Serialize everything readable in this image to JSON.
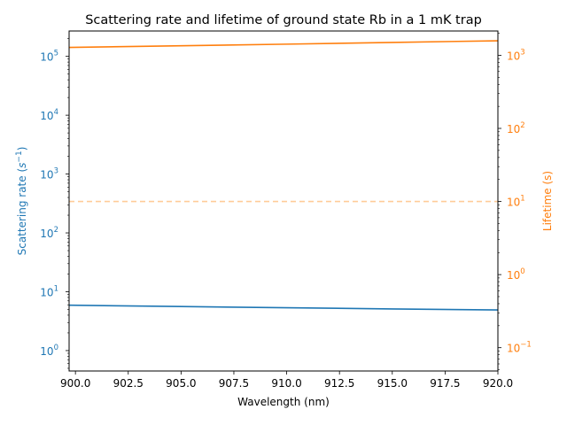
{
  "chart_data": {
    "type": "line",
    "title": "Scattering rate and lifetime of ground state Rb in a 1 mK trap",
    "xlabel": "Wavelength (nm)",
    "xlim": [
      899.7,
      920.0
    ],
    "xticks": [
      "900.0",
      "902.5",
      "905.0",
      "907.5",
      "910.0",
      "912.5",
      "915.0",
      "917.5",
      "920.0"
    ],
    "y_left": {
      "label_main": "Scattering rate (",
      "label_unit": "s",
      "label_exp": "−1",
      "label_end": ")",
      "scale": "log",
      "ylim": [
        0.45,
        270000
      ],
      "ticks": [
        {
          "base": "10",
          "exp": "0"
        },
        {
          "base": "10",
          "exp": "1"
        },
        {
          "base": "10",
          "exp": "2"
        },
        {
          "base": "10",
          "exp": "3"
        },
        {
          "base": "10",
          "exp": "4"
        },
        {
          "base": "10",
          "exp": "5"
        }
      ],
      "color": "#1f77b4"
    },
    "y_right": {
      "label": "Lifetime (s)",
      "scale": "log",
      "ylim": [
        0.048,
        2150
      ],
      "ticks": [
        {
          "base": "10",
          "exp": "−1"
        },
        {
          "base": "10",
          "exp": "0"
        },
        {
          "base": "10",
          "exp": "1"
        },
        {
          "base": "10",
          "exp": "2"
        },
        {
          "base": "10",
          "exp": "3"
        }
      ],
      "color": "#ff7f0e"
    },
    "series": [
      {
        "axis": "left",
        "color": "#1f77b4",
        "x": [
          899.7,
          905,
          910,
          915,
          920
        ],
        "y": [
          5.9,
          5.6,
          5.35,
          5.1,
          4.9
        ]
      },
      {
        "axis": "right",
        "color": "#ff7f0e",
        "x": [
          899.7,
          905,
          910,
          915,
          920
        ],
        "y": [
          1280,
          1350,
          1420,
          1500,
          1580
        ]
      }
    ],
    "reference_line": {
      "axis": "right",
      "y": 10,
      "color": "#ffcc99",
      "style": "dashed"
    }
  }
}
